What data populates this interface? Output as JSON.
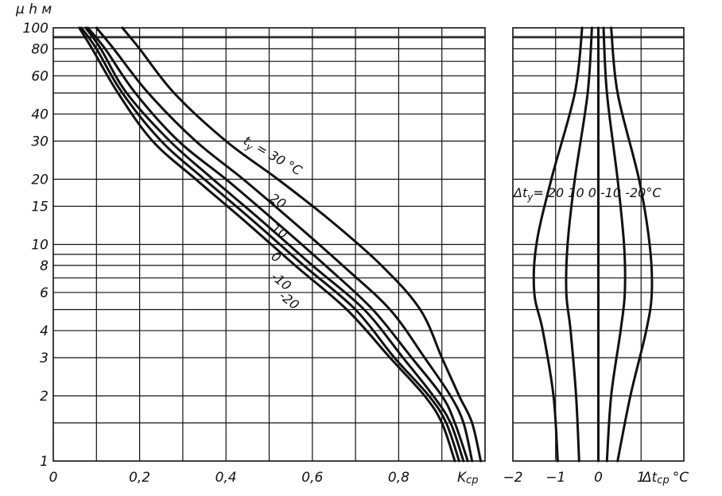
{
  "chart_data": [
    {
      "type": "line",
      "ylabel": "μ h м",
      "xlabel": "K",
      "xlabel_sub": "ср",
      "x_scale": "linear",
      "y_scale": "log",
      "xlim": [
        0,
        1.0
      ],
      "ylim": [
        1,
        100
      ],
      "x_ticks": [
        {
          "value": 0,
          "label": "0"
        },
        {
          "value": 0.2,
          "label": "0,2"
        },
        {
          "value": 0.4,
          "label": "0,4"
        },
        {
          "value": 0.6,
          "label": "0,6"
        },
        {
          "value": 0.8,
          "label": "0,8"
        }
      ],
      "y_ticks": [
        {
          "value": 1,
          "label": "1"
        },
        {
          "value": 2,
          "label": "2"
        },
        {
          "value": 3,
          "label": "3"
        },
        {
          "value": 4,
          "label": "4"
        },
        {
          "value": 6,
          "label": "6"
        },
        {
          "value": 8,
          "label": "8"
        },
        {
          "value": 10,
          "label": "10"
        },
        {
          "value": 15,
          "label": "15"
        },
        {
          "value": 20,
          "label": "20"
        },
        {
          "value": 30,
          "label": "30"
        },
        {
          "value": 40,
          "label": "40"
        },
        {
          "value": 60,
          "label": "60"
        },
        {
          "value": 80,
          "label": "80"
        },
        {
          "value": 100,
          "label": "100"
        }
      ],
      "grid_x": [
        0.1,
        0.2,
        0.3,
        0.4,
        0.5,
        0.6,
        0.7,
        0.8,
        0.9
      ],
      "grid_y": [
        1.5,
        2,
        3,
        4,
        5,
        6,
        7,
        8,
        9,
        10,
        15,
        20,
        30,
        40,
        50,
        60,
        70,
        80,
        90
      ],
      "grid": true,
      "series": [
        {
          "name": "30 °C",
          "points": [
            [
              0.16,
              100
            ],
            [
              0.2,
              80
            ],
            [
              0.28,
              50
            ],
            [
              0.4,
              30
            ],
            [
              0.52,
              20
            ],
            [
              0.64,
              13
            ],
            [
              0.76,
              8
            ],
            [
              0.85,
              5
            ],
            [
              0.9,
              3
            ],
            [
              0.94,
              2
            ],
            [
              0.97,
              1.5
            ],
            [
              0.99,
              1
            ]
          ]
        },
        {
          "name": "20",
          "points": [
            [
              0.1,
              100
            ],
            [
              0.14,
              80
            ],
            [
              0.22,
              50
            ],
            [
              0.33,
              30
            ],
            [
              0.44,
              20
            ],
            [
              0.55,
              13
            ],
            [
              0.67,
              8
            ],
            [
              0.78,
              5
            ],
            [
              0.86,
              3
            ],
            [
              0.92,
              2
            ],
            [
              0.95,
              1.5
            ],
            [
              0.97,
              1
            ]
          ]
        },
        {
          "name": "10",
          "points": [
            [
              0.08,
              100
            ],
            [
              0.12,
              80
            ],
            [
              0.19,
              50
            ],
            [
              0.29,
              30
            ],
            [
              0.4,
              20
            ],
            [
              0.51,
              13
            ],
            [
              0.63,
              8
            ],
            [
              0.74,
              5
            ],
            [
              0.83,
              3
            ],
            [
              0.9,
              2
            ],
            [
              0.93,
              1.5
            ],
            [
              0.96,
              1
            ]
          ]
        },
        {
          "name": "0",
          "points": [
            [
              0.075,
              100
            ],
            [
              0.11,
              80
            ],
            [
              0.17,
              50
            ],
            [
              0.27,
              30
            ],
            [
              0.37,
              20
            ],
            [
              0.48,
              13
            ],
            [
              0.6,
              8
            ],
            [
              0.72,
              5
            ],
            [
              0.81,
              3
            ],
            [
              0.88,
              2
            ],
            [
              0.92,
              1.5
            ],
            [
              0.95,
              1
            ]
          ]
        },
        {
          "name": "-10",
          "points": [
            [
              0.065,
              100
            ],
            [
              0.1,
              80
            ],
            [
              0.16,
              50
            ],
            [
              0.25,
              30
            ],
            [
              0.35,
              20
            ],
            [
              0.46,
              13
            ],
            [
              0.58,
              8
            ],
            [
              0.7,
              5
            ],
            [
              0.79,
              3
            ],
            [
              0.87,
              2
            ],
            [
              0.91,
              1.5
            ],
            [
              0.94,
              1
            ]
          ]
        },
        {
          "name": "-20",
          "points": [
            [
              0.06,
              100
            ],
            [
              0.09,
              80
            ],
            [
              0.15,
              50
            ],
            [
              0.23,
              30
            ],
            [
              0.33,
              20
            ],
            [
              0.44,
              13
            ],
            [
              0.56,
              8
            ],
            [
              0.68,
              5
            ],
            [
              0.78,
              3
            ],
            [
              0.86,
              2
            ],
            [
              0.9,
              1.5
            ],
            [
              0.93,
              1
            ]
          ]
        }
      ],
      "annotations": [
        {
          "text": "t",
          "sub": "у",
          "rest": " = 30 °C"
        },
        {
          "text": "20"
        },
        {
          "text": "10"
        },
        {
          "text": "0"
        },
        {
          "text": "-10"
        },
        {
          "text": "-20"
        }
      ]
    },
    {
      "type": "line",
      "xlabel": "Δt",
      "xlabel_sub": "ср",
      "xlabel_unit": "°C",
      "x_scale": "linear",
      "y_scale": "log",
      "xlim": [
        -2,
        2
      ],
      "ylim": [
        1,
        100
      ],
      "x_ticks": [
        {
          "value": -2,
          "label": "−2"
        },
        {
          "value": -1,
          "label": "−1"
        },
        {
          "value": 0,
          "label": "0"
        },
        {
          "value": 1,
          "label": "1"
        }
      ],
      "grid_x": [
        -1,
        0,
        1
      ],
      "grid_y": [
        1.5,
        2,
        3,
        4,
        5,
        6,
        7,
        8,
        9,
        10,
        15,
        20,
        30,
        40,
        50,
        60,
        70,
        80,
        90
      ],
      "grid": true,
      "series_label": {
        "text": "Δt",
        "sub": "у",
        "rest": "= 20  10  0  -10  -20°C"
      },
      "series": [
        {
          "name": "20",
          "points": [
            [
              -0.95,
              1
            ],
            [
              -1.05,
              2
            ],
            [
              -1.3,
              4
            ],
            [
              -1.5,
              6
            ],
            [
              -1.45,
              10
            ],
            [
              -1.1,
              20
            ],
            [
              -0.55,
              50
            ],
            [
              -0.38,
              100
            ]
          ]
        },
        {
          "name": "10",
          "points": [
            [
              -0.45,
              1
            ],
            [
              -0.52,
              2
            ],
            [
              -0.65,
              4
            ],
            [
              -0.75,
              6
            ],
            [
              -0.72,
              10
            ],
            [
              -0.55,
              20
            ],
            [
              -0.25,
              50
            ],
            [
              -0.15,
              100
            ]
          ]
        },
        {
          "name": "0",
          "points": [
            [
              0,
              1
            ],
            [
              0,
              2
            ],
            [
              0,
              4
            ],
            [
              0,
              6
            ],
            [
              0,
              10
            ],
            [
              0,
              20
            ],
            [
              0,
              50
            ],
            [
              0,
              100
            ]
          ]
        },
        {
          "name": "-10",
          "points": [
            [
              0.2,
              1
            ],
            [
              0.3,
              2
            ],
            [
              0.52,
              4
            ],
            [
              0.62,
              6
            ],
            [
              0.6,
              10
            ],
            [
              0.45,
              20
            ],
            [
              0.2,
              50
            ],
            [
              0.12,
              100
            ]
          ]
        },
        {
          "name": "-20",
          "points": [
            [
              0.45,
              1
            ],
            [
              0.75,
              2
            ],
            [
              1.12,
              4
            ],
            [
              1.25,
              6
            ],
            [
              1.2,
              10
            ],
            [
              0.95,
              20
            ],
            [
              0.45,
              50
            ],
            [
              0.3,
              100
            ]
          ]
        }
      ]
    }
  ]
}
